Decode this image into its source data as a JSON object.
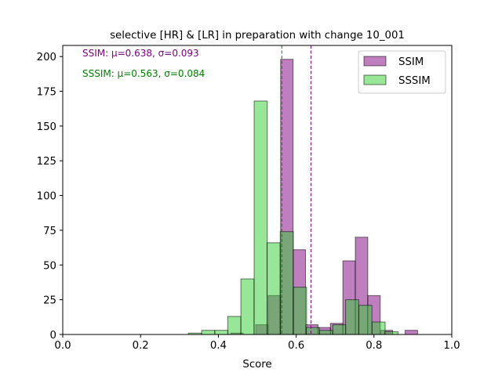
{
  "chart_data": {
    "type": "bar",
    "title": "selective [HR] & [LR] in preparation with change 10_001",
    "xlabel": "Score",
    "ylabel": "",
    "xlim": [
      0.0,
      1.0
    ],
    "ylim": [
      0,
      208
    ],
    "xticks": [
      "0.0",
      "0.2",
      "0.4",
      "0.6",
      "0.8",
      "1.0"
    ],
    "yticks": [
      "0",
      "25",
      "50",
      "75",
      "100",
      "125",
      "150",
      "175",
      "200"
    ],
    "legend_position": "top-right",
    "annotations": [
      {
        "text": "SSIM: μ=0.638, σ=0.093",
        "color": "#800080"
      },
      {
        "text": "SSSIM: μ=0.563, σ=0.084",
        "color": "#008000"
      }
    ],
    "mean_lines": [
      {
        "series": "SSIM",
        "value": 0.638,
        "color": "#800080"
      },
      {
        "series": "SSSIM",
        "value": 0.563,
        "color": "#008000"
      }
    ],
    "series": [
      {
        "name": "SSIM",
        "color": "#800080",
        "opacity": 0.5,
        "bin_width": 0.032,
        "bins": [
          {
            "x0": 0.432,
            "count": 1
          },
          {
            "x0": 0.464,
            "count": 0
          },
          {
            "x0": 0.496,
            "count": 7
          },
          {
            "x0": 0.528,
            "count": 28
          },
          {
            "x0": 0.56,
            "count": 198
          },
          {
            "x0": 0.592,
            "count": 61
          },
          {
            "x0": 0.624,
            "count": 7
          },
          {
            "x0": 0.656,
            "count": 5
          },
          {
            "x0": 0.688,
            "count": 8
          },
          {
            "x0": 0.72,
            "count": 53
          },
          {
            "x0": 0.752,
            "count": 70
          },
          {
            "x0": 0.784,
            "count": 28
          },
          {
            "x0": 0.816,
            "count": 3
          },
          {
            "x0": 0.848,
            "count": 0
          },
          {
            "x0": 0.88,
            "count": 3
          }
        ]
      },
      {
        "name": "SSSIM",
        "color": "#32CD32",
        "opacity": 0.5,
        "bin_width": 0.0337,
        "bins": [
          {
            "x0": 0.323,
            "count": 1
          },
          {
            "x0": 0.357,
            "count": 3
          },
          {
            "x0": 0.391,
            "count": 3
          },
          {
            "x0": 0.424,
            "count": 13
          },
          {
            "x0": 0.458,
            "count": 40
          },
          {
            "x0": 0.492,
            "count": 168
          },
          {
            "x0": 0.525,
            "count": 66
          },
          {
            "x0": 0.559,
            "count": 74
          },
          {
            "x0": 0.593,
            "count": 34
          },
          {
            "x0": 0.626,
            "count": 5
          },
          {
            "x0": 0.66,
            "count": 3
          },
          {
            "x0": 0.694,
            "count": 7
          },
          {
            "x0": 0.727,
            "count": 25
          },
          {
            "x0": 0.761,
            "count": 21
          },
          {
            "x0": 0.795,
            "count": 9
          },
          {
            "x0": 0.828,
            "count": 2
          }
        ]
      }
    ]
  }
}
